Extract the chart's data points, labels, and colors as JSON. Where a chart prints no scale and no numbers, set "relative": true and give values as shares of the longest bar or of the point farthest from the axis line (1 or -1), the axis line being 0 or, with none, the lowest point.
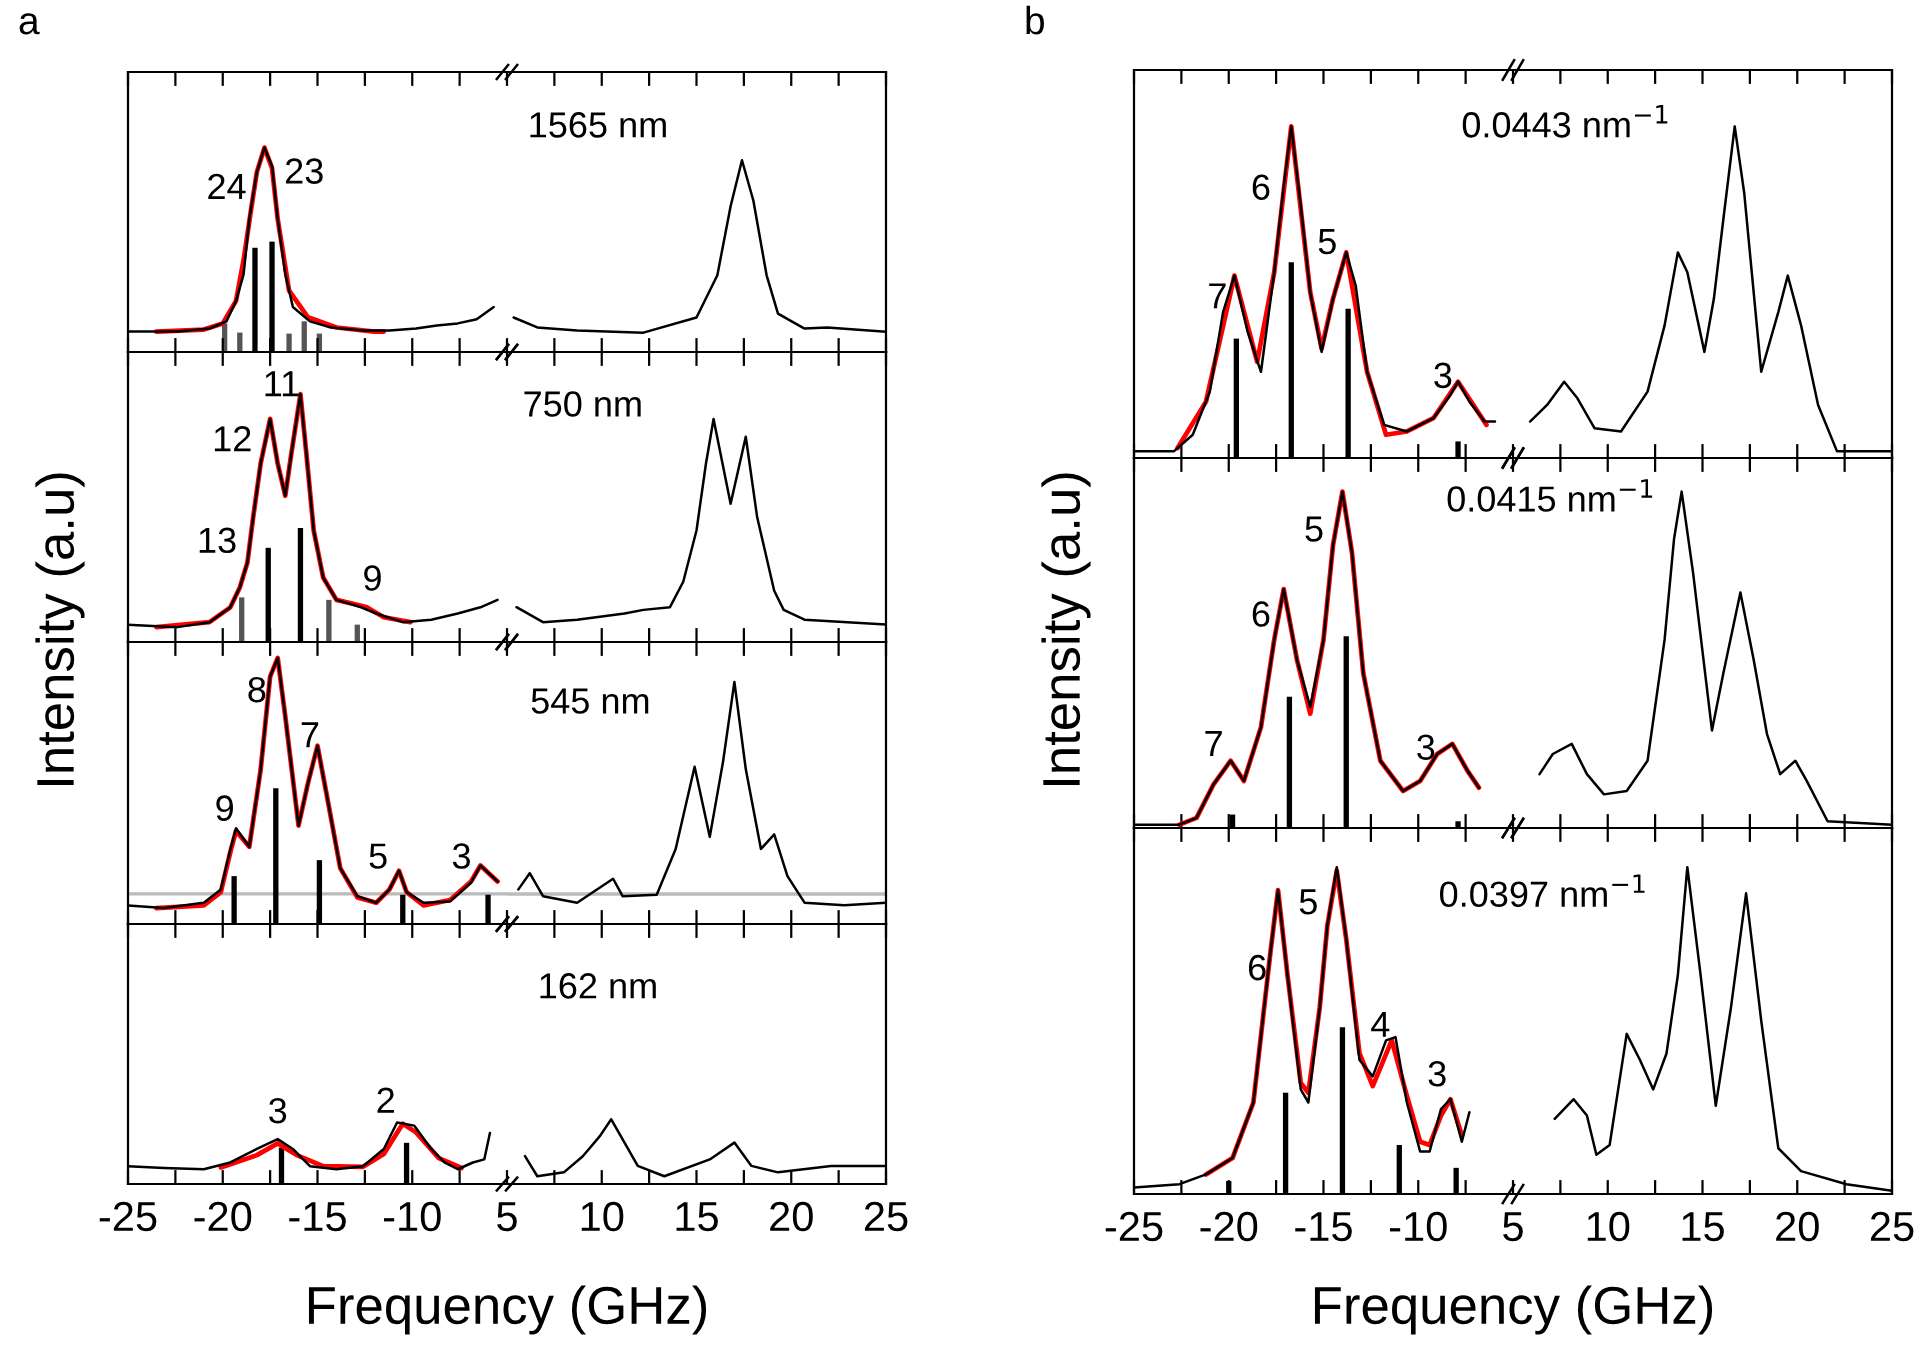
{
  "chart_data": [
    {
      "type": "line",
      "title": "a",
      "ylabel": "Intensity (a.u)",
      "relative": true,
      "tick_labels": false,
      "xlim": [
        -25,
        -5
      ],
      "xticks": [
        -25,
        {
          "value": -22.5,
          "label": null
        },
        -20,
        {
          "value": -17.5,
          "label": null
        },
        -15,
        {
          "value": -12.5,
          "label": null
        },
        -10,
        {
          "value": -7.5,
          "label": null
        }
      ],
      "annotations": [
        "24",
        "23"
      ],
      "series": [
        {
          "type": "line",
          "color": "#000000",
          "x": [
            -25,
            -22.4,
            -20.7,
            -19.8,
            -19.3,
            -18.9,
            -18.6,
            -18.2,
            -17.8,
            -17.4,
            -17.1,
            -16.7,
            -16.3,
            -15.4,
            -14.3,
            -12.6,
            -11.2,
            -9.8,
            -8.7,
            -7.6,
            -6.6,
            -5.7
          ],
          "values": [
            0.1,
            0.1,
            0.115,
            0.15,
            0.25,
            0.38,
            0.65,
            0.88,
            1.0,
            0.91,
            0.65,
            0.38,
            0.22,
            0.15,
            0.12,
            0.105,
            0.105,
            0.115,
            0.13,
            0.14,
            0.16,
            0.22
          ]
        },
        {
          "type": "line",
          "color": "#ff0000",
          "x": [
            -23.5,
            -21,
            -20,
            -19.3,
            -18.9,
            -18.5,
            -18.2,
            -17.8,
            -17.4,
            -17.1,
            -16.5,
            -15.5,
            -14,
            -12,
            -11.5
          ],
          "values": [
            0.1,
            0.11,
            0.14,
            0.25,
            0.45,
            0.7,
            0.88,
            1.0,
            0.9,
            0.65,
            0.3,
            0.17,
            0.12,
            0.1,
            0.1
          ]
        },
        {
          "type": "bar",
          "color": "#000000",
          "x": [
            -18.3,
            -17.4
          ],
          "values": [
            0.51,
            0.54
          ]
        },
        {
          "type": "bar",
          "color": "#555555",
          "x": [
            -19.9,
            -19.1,
            -16.5,
            -15.7,
            -14.9
          ],
          "values": [
            0.14,
            0.095,
            0.09,
            0.15,
            0.09
          ]
        }
      ]
    },
    {
      "type": "line",
      "relative": true,
      "tick_labels": false,
      "xlim": [
        5,
        25
      ],
      "xticks": [
        5,
        {
          "value": 7.5,
          "label": null
        },
        10,
        {
          "value": 12.5,
          "label": null
        },
        15,
        {
          "value": 17.5,
          "label": null
        },
        20,
        {
          "value": 22.5,
          "label": null
        },
        25
      ],
      "annotations": [
        "1565 nm"
      ],
      "series": [
        {
          "type": "line",
          "color": "#000000",
          "x": [
            5.35,
            6.6,
            8.7,
            12.2,
            15.0,
            16.1,
            16.8,
            17.4,
            18.0,
            18.7,
            19.3,
            20.7,
            21.9,
            25
          ],
          "values": [
            0.18,
            0.128,
            0.112,
            0.101,
            0.18,
            0.4,
            0.76,
            1.0,
            0.79,
            0.4,
            0.2,
            0.122,
            0.128,
            0.106
          ]
        }
      ]
    },
    {
      "type": "line",
      "relative": true,
      "tick_labels": false,
      "xlim": [
        -25,
        -5
      ],
      "xticks": [
        -25,
        {
          "value": -22.5,
          "label": null
        },
        -20,
        {
          "value": -17.5,
          "label": null
        },
        -15,
        {
          "value": -12.5,
          "label": null
        },
        -10,
        {
          "value": -7.5,
          "label": null
        }
      ],
      "annotations": [
        "13",
        "12",
        "11",
        "9"
      ],
      "series": [
        {
          "type": "line",
          "color": "#000000",
          "x": [
            -25,
            -22.4,
            -20.7,
            -19.6,
            -19.1,
            -18.7,
            -18.4,
            -18.0,
            -17.5,
            -17.1,
            -16.7,
            -16.4,
            -15.9,
            -15.6,
            -15.2,
            -14.7,
            -14.0,
            -12.7,
            -11.9,
            -10.5,
            -9.0,
            -7.6,
            -6.4,
            -5.5
          ],
          "values": [
            0.07,
            0.06,
            0.08,
            0.14,
            0.22,
            0.32,
            0.5,
            0.72,
            0.9,
            0.72,
            0.59,
            0.75,
            1.0,
            0.77,
            0.45,
            0.26,
            0.17,
            0.14,
            0.115,
            0.08,
            0.09,
            0.115,
            0.14,
            0.17
          ]
        },
        {
          "type": "line",
          "color": "#ff0000",
          "x": [
            -23.5,
            -20.7,
            -19.6,
            -19.1,
            -18.7,
            -18.4,
            -18.0,
            -17.5,
            -17.1,
            -16.7,
            -16.4,
            -15.9,
            -15.6,
            -15.2,
            -14.7,
            -14.0,
            -12.9,
            -12.4,
            -11.5,
            -10.1
          ],
          "values": [
            0.06,
            0.08,
            0.14,
            0.22,
            0.32,
            0.5,
            0.72,
            0.9,
            0.72,
            0.59,
            0.75,
            1.0,
            0.77,
            0.45,
            0.26,
            0.17,
            0.15,
            0.14,
            0.1,
            0.08
          ]
        },
        {
          "type": "bar",
          "color": "#000000",
          "x": [
            -17.6,
            -15.9
          ],
          "values": [
            0.38,
            0.46
          ]
        },
        {
          "type": "bar",
          "color": "#555555",
          "x": [
            -19.0,
            -14.4,
            -12.9
          ],
          "values": [
            0.18,
            0.17,
            0.07
          ]
        }
      ]
    },
    {
      "type": "line",
      "relative": true,
      "tick_labels": false,
      "xlim": [
        5,
        25
      ],
      "xticks": [
        5,
        {
          "value": 7.5,
          "label": null
        },
        10,
        {
          "value": 12.5,
          "label": null
        },
        15,
        {
          "value": 17.5,
          "label": null
        },
        20,
        {
          "value": 22.5,
          "label": null
        },
        25
      ],
      "annotations": [
        "750 nm"
      ],
      "series": [
        {
          "type": "line",
          "color": "#000000",
          "x": [
            5.5,
            6.9,
            8.7,
            11.2,
            12.2,
            13.6,
            14.3,
            15.0,
            15.5,
            15.9,
            16.8,
            17.6,
            18.2,
            19.1,
            19.6,
            20.7,
            25
          ],
          "values": [
            0.156,
            0.089,
            0.1,
            0.128,
            0.144,
            0.156,
            0.27,
            0.5,
            0.8,
            1.0,
            0.62,
            0.92,
            0.56,
            0.23,
            0.144,
            0.1,
            0.078
          ]
        }
      ]
    },
    {
      "type": "line",
      "relative": true,
      "tick_labels": false,
      "xlim": [
        -25,
        -5
      ],
      "xticks": [
        -25,
        {
          "value": -22.5,
          "label": null
        },
        -20,
        {
          "value": -17.5,
          "label": null
        },
        -15,
        {
          "value": -12.5,
          "label": null
        },
        -10,
        {
          "value": -7.5,
          "label": null
        }
      ],
      "annotations": [
        "9",
        "8",
        "7",
        "5",
        "3"
      ],
      "ref_lines": [
        {
          "axis": "y",
          "value": 0.113,
          "color": "#bbbbbb"
        }
      ],
      "series": [
        {
          "type": "line",
          "color": "#000000",
          "x": [
            -25,
            -23.1,
            -21.0,
            -20.1,
            -19.6,
            -19.3,
            -18.6,
            -18.0,
            -17.5,
            -17.1,
            -16.7,
            -16.0,
            -15.5,
            -15.0,
            -14.5,
            -13.8,
            -12.9,
            -11.9,
            -11.2,
            -10.7,
            -10.3,
            -9.4,
            -8.0,
            -6.9,
            -6.4,
            -5.5
          ],
          "values": [
            0.07,
            0.06,
            0.08,
            0.13,
            0.28,
            0.36,
            0.29,
            0.58,
            0.93,
            1.0,
            0.78,
            0.37,
            0.53,
            0.67,
            0.48,
            0.21,
            0.105,
            0.08,
            0.13,
            0.2,
            0.12,
            0.08,
            0.085,
            0.155,
            0.22,
            0.16
          ]
        },
        {
          "type": "line",
          "color": "#ff0000",
          "x": [
            -23.5,
            -21.0,
            -20.1,
            -19.6,
            -19.3,
            -18.6,
            -18.0,
            -17.5,
            -17.1,
            -16.7,
            -16.0,
            -15.5,
            -15.0,
            -14.5,
            -13.8,
            -12.9,
            -11.9,
            -11.2,
            -10.7,
            -10.3,
            -9.4,
            -8.0,
            -6.9,
            -6.4,
            -5.5
          ],
          "values": [
            0.06,
            0.07,
            0.12,
            0.27,
            0.35,
            0.29,
            0.58,
            0.93,
            1.0,
            0.78,
            0.37,
            0.53,
            0.67,
            0.48,
            0.21,
            0.1,
            0.08,
            0.13,
            0.2,
            0.12,
            0.07,
            0.09,
            0.16,
            0.22,
            0.16
          ]
        },
        {
          "type": "bar",
          "color": "#000000",
          "x": [
            -19.4,
            -17.2,
            -14.9,
            -10.5,
            -6.0
          ],
          "values": [
            0.18,
            0.51,
            0.24,
            0.11,
            0.11
          ]
        }
      ]
    },
    {
      "type": "line",
      "relative": true,
      "tick_labels": false,
      "xlim": [
        5,
        25
      ],
      "xticks": [
        5,
        {
          "value": 7.5,
          "label": null
        },
        10,
        {
          "value": 12.5,
          "label": null
        },
        15,
        {
          "value": 17.5,
          "label": null
        },
        20,
        {
          "value": 22.5,
          "label": null
        },
        25
      ],
      "annotations": [
        "545 nm"
      ],
      "ref_lines": [
        {
          "axis": "y",
          "value": 0.124,
          "color": "#bbbbbb"
        }
      ],
      "series": [
        {
          "type": "line",
          "color": "#000000",
          "x": [
            5.6,
            6.2,
            6.9,
            8.7,
            10.6,
            11.1,
            12.9,
            13.9,
            14.9,
            15.7,
            16.4,
            17.0,
            17.6,
            18.4,
            19.1,
            19.8,
            20.7,
            22.8,
            25
          ],
          "values": [
            0.143,
            0.21,
            0.115,
            0.088,
            0.187,
            0.115,
            0.121,
            0.31,
            0.65,
            0.36,
            0.67,
            1.0,
            0.64,
            0.31,
            0.37,
            0.198,
            0.088,
            0.077,
            0.088
          ]
        }
      ]
    },
    {
      "type": "line",
      "xlabel": "Frequency (GHz)",
      "relative": true,
      "tick_labels": "x",
      "xlim": [
        -25,
        -5
      ],
      "xticks": [
        -25,
        {
          "value": -22.5,
          "label": null
        },
        -20,
        {
          "value": -17.5,
          "label": null
        },
        -15,
        {
          "value": -12.5,
          "label": null
        },
        -10,
        {
          "value": -7.5,
          "label": null
        }
      ],
      "annotations": [
        "3",
        "2"
      ],
      "series": [
        {
          "type": "line",
          "color": "#000000",
          "x": [
            -25,
            -23.1,
            -21.0,
            -19.6,
            -18.2,
            -17.1,
            -16.3,
            -15.4,
            -14.0,
            -12.6,
            -11.5,
            -10.8,
            -9.9,
            -9.0,
            -8.3,
            -7.6,
            -6.8,
            -6.2,
            -5.9
          ],
          "values": [
            0.29,
            0.26,
            0.24,
            0.35,
            0.57,
            0.73,
            0.57,
            0.29,
            0.24,
            0.29,
            0.57,
            1.0,
            0.95,
            0.57,
            0.35,
            0.24,
            0.35,
            0.4,
            0.83
          ]
        },
        {
          "type": "line",
          "color": "#ff0000",
          "x": [
            -20.1,
            -18.2,
            -17.1,
            -16.1,
            -14.7,
            -12.6,
            -11.5,
            -10.5,
            -9.8,
            -8.6,
            -7.4
          ],
          "values": [
            0.27,
            0.47,
            0.66,
            0.47,
            0.29,
            0.28,
            0.49,
            0.98,
            0.84,
            0.42,
            0.26
          ]
        },
        {
          "type": "bar",
          "color": "#000000",
          "x": [
            -16.9,
            -10.3
          ],
          "values": [
            0.59,
            0.67
          ]
        }
      ]
    },
    {
      "type": "line",
      "relative": true,
      "tick_labels": "x",
      "xlim": [
        5,
        25
      ],
      "xticks": [
        5,
        {
          "value": 7.5,
          "label": null
        },
        10,
        {
          "value": 12.5,
          "label": null
        },
        15,
        {
          "value": 17.5,
          "label": null
        },
        20,
        {
          "value": 22.5,
          "label": null
        },
        25
      ],
      "annotations": [
        "162 nm"
      ],
      "series": [
        {
          "type": "line",
          "color": "#000000",
          "x": [
            5.95,
            6.6,
            8.0,
            9.0,
            9.9,
            10.5,
            11.2,
            11.9,
            13.3,
            15.7,
            17.0,
            17.9,
            19.3,
            22.1,
            25
          ],
          "values": [
            0.43,
            0.12,
            0.18,
            0.43,
            0.74,
            1.0,
            0.64,
            0.28,
            0.12,
            0.38,
            0.64,
            0.28,
            0.18,
            0.28,
            0.28
          ]
        }
      ]
    },
    {
      "type": "line",
      "title": "b",
      "ylabel": "Intensity (a.u)",
      "relative": true,
      "tick_labels": false,
      "xlim": [
        -25,
        -5
      ],
      "xticks": [
        -25,
        {
          "value": -22.5,
          "label": null
        },
        -20,
        {
          "value": -17.5,
          "label": null
        },
        -15,
        {
          "value": -12.5,
          "label": null
        },
        -10,
        {
          "value": -7.5,
          "label": null
        }
      ],
      "annotations": [
        "7",
        "6",
        "5",
        "3"
      ],
      "series": [
        {
          "type": "line",
          "color": "#000000",
          "x": [
            -25,
            -22.9,
            -21.9,
            -21.0,
            -20.3,
            -19.7,
            -19.0,
            -18.3,
            -17.6,
            -17.1,
            -16.7,
            -16.2,
            -15.7,
            -15.1,
            -14.5,
            -13.8,
            -13.3,
            -12.7,
            -11.8,
            -10.6,
            -9.2,
            -8.3,
            -7.9,
            -7.3,
            -6.5,
            -5.95
          ],
          "values": [
            0.02,
            0.02,
            0.07,
            0.2,
            0.44,
            0.55,
            0.38,
            0.26,
            0.56,
            0.82,
            1.0,
            0.76,
            0.5,
            0.32,
            0.48,
            0.62,
            0.52,
            0.26,
            0.1,
            0.08,
            0.12,
            0.19,
            0.23,
            0.17,
            0.11,
            0.11
          ]
        },
        {
          "type": "line",
          "color": "#ff0000",
          "x": [
            -22.7,
            -21.2,
            -19.7,
            -18.5,
            -17.6,
            -16.7,
            -15.7,
            -15.1,
            -14.5,
            -13.8,
            -12.7,
            -11.7,
            -10.6,
            -9.2,
            -7.9,
            -6.4
          ],
          "values": [
            0.03,
            0.17,
            0.55,
            0.29,
            0.56,
            1.0,
            0.5,
            0.33,
            0.48,
            0.62,
            0.26,
            0.07,
            0.08,
            0.12,
            0.23,
            0.1
          ]
        },
        {
          "type": "bar",
          "color": "#000000",
          "x": [
            -19.6,
            -16.7,
            -13.7,
            -7.9
          ],
          "values": [
            0.36,
            0.59,
            0.45,
            0.05
          ]
        }
      ]
    },
    {
      "type": "line",
      "relative": true,
      "tick_labels": false,
      "xlim": [
        5,
        25
      ],
      "xticks": [
        5,
        {
          "value": 7.5,
          "label": null
        },
        10,
        {
          "value": 12.5,
          "label": null
        },
        15,
        {
          "value": 17.5,
          "label": null
        },
        20,
        {
          "value": 22.5,
          "label": null
        },
        25
      ],
      "annotations": [
        "0.0443 nm$^{−1}$"
      ],
      "series": [
        {
          "type": "line",
          "color": "#000000",
          "x": [
            5.9,
            6.8,
            7.7,
            8.4,
            9.3,
            10.7,
            12.1,
            13.0,
            13.7,
            14.2,
            15.1,
            15.6,
            16.1,
            16.7,
            17.2,
            18.1,
            19.0,
            19.5,
            20.2,
            21.1,
            22.1,
            25
          ],
          "values": [
            0.11,
            0.16,
            0.23,
            0.18,
            0.09,
            0.08,
            0.2,
            0.4,
            0.62,
            0.56,
            0.32,
            0.48,
            0.72,
            1.0,
            0.8,
            0.26,
            0.44,
            0.55,
            0.4,
            0.16,
            0.02,
            0.02
          ]
        }
      ]
    },
    {
      "type": "line",
      "relative": true,
      "tick_labels": false,
      "xlim": [
        -25,
        -5
      ],
      "xticks": [
        -25,
        {
          "value": -22.5,
          "label": null
        },
        -20,
        {
          "value": -17.5,
          "label": null
        },
        -15,
        {
          "value": -12.5,
          "label": null
        },
        -10,
        {
          "value": -7.5,
          "label": null
        }
      ],
      "annotations": [
        "7",
        "6",
        "5",
        "3"
      ],
      "series": [
        {
          "type": "line",
          "color": "#000000",
          "x": [
            -25,
            -22.6,
            -21.7,
            -20.8,
            -19.9,
            -19.2,
            -18.3,
            -17.6,
            -17.1,
            -16.4,
            -15.7,
            -15.0,
            -14.5,
            -14.0,
            -13.5,
            -12.9,
            -12.0,
            -10.8,
            -9.9,
            -9.0,
            -8.2,
            -7.4,
            -6.8
          ],
          "values": [
            0.01,
            0.01,
            0.03,
            0.13,
            0.2,
            0.14,
            0.3,
            0.56,
            0.71,
            0.5,
            0.36,
            0.56,
            0.84,
            1.0,
            0.82,
            0.46,
            0.2,
            0.11,
            0.14,
            0.22,
            0.25,
            0.17,
            0.12
          ]
        },
        {
          "type": "line",
          "color": "#ff0000",
          "x": [
            -22.6,
            -21.7,
            -20.8,
            -19.9,
            -19.2,
            -18.3,
            -17.6,
            -17.1,
            -16.4,
            -15.7,
            -15.0,
            -14.5,
            -14.0,
            -13.5,
            -12.9,
            -12.0,
            -10.8,
            -9.9,
            -9.0,
            -8.2,
            -7.4,
            -6.8
          ],
          "values": [
            0.01,
            0.03,
            0.13,
            0.2,
            0.14,
            0.3,
            0.56,
            0.71,
            0.5,
            0.34,
            0.56,
            0.84,
            1.0,
            0.82,
            0.46,
            0.2,
            0.11,
            0.14,
            0.22,
            0.25,
            0.17,
            0.12
          ]
        },
        {
          "type": "bar",
          "color": "#000000",
          "x": [
            -19.8,
            -16.8,
            -13.8,
            -7.9
          ],
          "values": [
            0.04,
            0.39,
            0.57,
            0.02
          ]
        }
      ]
    },
    {
      "type": "line",
      "relative": true,
      "tick_labels": false,
      "xlim": [
        5,
        25
      ],
      "xticks": [
        5,
        {
          "value": 7.5,
          "label": null
        },
        10,
        {
          "value": 12.5,
          "label": null
        },
        15,
        {
          "value": 17.5,
          "label": null
        },
        20,
        {
          "value": 22.5,
          "label": null
        },
        25
      ],
      "annotations": [
        "0.0415 nm$^{−1}$"
      ],
      "series": [
        {
          "type": "line",
          "color": "#000000",
          "x": [
            6.4,
            7.1,
            8.1,
            8.9,
            9.8,
            11.0,
            12.1,
            13.0,
            13.5,
            13.9,
            14.5,
            15.5,
            16.1,
            17.0,
            17.7,
            18.4,
            19.1,
            19.9,
            20.5,
            21.6,
            25
          ],
          "values": [
            0.16,
            0.22,
            0.25,
            0.16,
            0.1,
            0.11,
            0.2,
            0.56,
            0.86,
            1.0,
            0.76,
            0.29,
            0.46,
            0.7,
            0.5,
            0.28,
            0.16,
            0.2,
            0.14,
            0.02,
            0.01
          ]
        }
      ]
    },
    {
      "type": "line",
      "xlabel": "Frequency (GHz)",
      "relative": true,
      "tick_labels": "x",
      "xlim": [
        -25,
        -5
      ],
      "xticks": [
        -25,
        {
          "value": -22.5,
          "label": null
        },
        -20,
        {
          "value": -17.5,
          "label": null
        },
        -15,
        {
          "value": -12.5,
          "label": null
        },
        -10,
        {
          "value": -7.5,
          "label": null
        }
      ],
      "annotations": [
        "6",
        "5",
        "4",
        "3"
      ],
      "series": [
        {
          "type": "line",
          "color": "#000000",
          "x": [
            -25,
            -22.6,
            -21.2,
            -19.8,
            -18.7,
            -17.8,
            -17.4,
            -16.9,
            -16.2,
            -15.8,
            -15.2,
            -14.8,
            -14.3,
            -13.8,
            -13.1,
            -12.4,
            -11.7,
            -11.2,
            -10.6,
            -9.9,
            -9.4,
            -8.8,
            -8.3,
            -7.7,
            -7.3
          ],
          "values": [
            0.02,
            0.03,
            0.06,
            0.11,
            0.28,
            0.74,
            0.93,
            0.67,
            0.32,
            0.28,
            0.57,
            0.82,
            1.0,
            0.78,
            0.41,
            0.36,
            0.47,
            0.48,
            0.28,
            0.13,
            0.13,
            0.26,
            0.29,
            0.16,
            0.25
          ]
        },
        {
          "type": "line",
          "color": "#ff0000",
          "x": [
            -21.2,
            -19.8,
            -18.7,
            -17.8,
            -17.4,
            -16.9,
            -16.2,
            -15.8,
            -15.2,
            -14.8,
            -14.3,
            -13.8,
            -13.1,
            -12.4,
            -11.4,
            -10.6,
            -9.9,
            -9.4,
            -8.8,
            -8.3,
            -7.7
          ],
          "values": [
            0.06,
            0.11,
            0.28,
            0.74,
            0.93,
            0.67,
            0.34,
            0.31,
            0.57,
            0.82,
            0.99,
            0.78,
            0.43,
            0.33,
            0.47,
            0.3,
            0.16,
            0.15,
            0.24,
            0.29,
            0.18
          ]
        },
        {
          "type": "bar",
          "color": "#000000",
          "x": [
            -20.0,
            -17.0,
            -14.0,
            -11.0,
            -8.0
          ],
          "values": [
            0.04,
            0.31,
            0.51,
            0.15,
            0.08
          ]
        }
      ]
    },
    {
      "type": "line",
      "relative": true,
      "tick_labels": "x",
      "xlim": [
        5,
        25
      ],
      "xticks": [
        5,
        {
          "value": 7.5,
          "label": null
        },
        10,
        {
          "value": 12.5,
          "label": null
        },
        15,
        {
          "value": 17.5,
          "label": null
        },
        20,
        {
          "value": 22.5,
          "label": null
        },
        25
      ],
      "annotations": [
        "0.0397 nm$^{−1}$"
      ],
      "series": [
        {
          "type": "line",
          "color": "#000000",
          "x": [
            7.2,
            8.2,
            8.9,
            9.4,
            10.1,
            11.0,
            11.7,
            12.4,
            13.1,
            13.7,
            14.2,
            14.9,
            15.7,
            16.5,
            17.3,
            18.1,
            19.0,
            20.2,
            22.6,
            25
          ],
          "values": [
            0.23,
            0.29,
            0.24,
            0.12,
            0.15,
            0.49,
            0.41,
            0.32,
            0.43,
            0.67,
            1.0,
            0.67,
            0.27,
            0.57,
            0.92,
            0.53,
            0.14,
            0.07,
            0.03,
            0.01
          ]
        }
      ]
    }
  ]
}
